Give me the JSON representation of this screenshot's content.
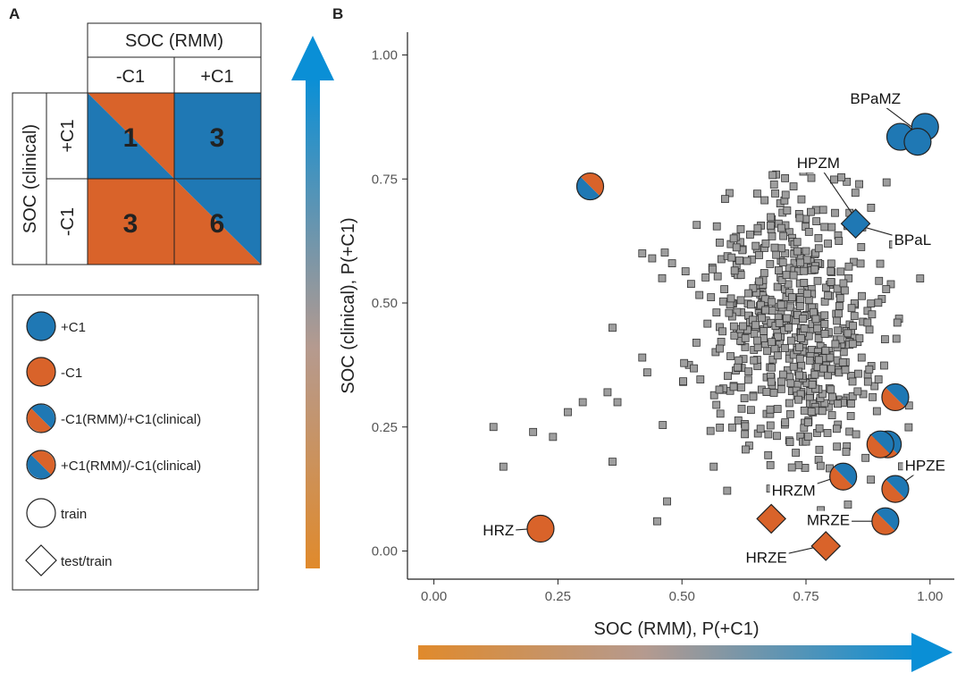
{
  "panels": {
    "a": "A",
    "b": "B"
  },
  "matrix": {
    "col_header": "SOC (RMM)",
    "row_header": "SOC (clinical)",
    "col_labels": [
      "-C1",
      "+C1"
    ],
    "row_labels": [
      "+C1",
      "-C1"
    ],
    "cells": [
      {
        "value": "1",
        "style": "orange-blue"
      },
      {
        "value": "3",
        "style": "blue"
      },
      {
        "value": "3",
        "style": "orange"
      },
      {
        "value": "6",
        "style": "orange-blue"
      }
    ]
  },
  "legend": {
    "items": [
      {
        "label": "+C1",
        "shape": "circle",
        "fill": "blue"
      },
      {
        "label": "-C1",
        "shape": "circle",
        "fill": "orange"
      },
      {
        "label": "-C1(RMM)/+C1(clinical)",
        "shape": "circle",
        "fill": "orange-blue"
      },
      {
        "label": "+C1(RMM)/-C1(clinical)",
        "shape": "circle",
        "fill": "blue-orange"
      },
      {
        "label": "train",
        "shape": "circle",
        "fill": "none"
      },
      {
        "label": "test/train",
        "shape": "diamond",
        "fill": "none"
      }
    ]
  },
  "colors": {
    "blue": "#1f78b4",
    "blue_bright": "#0a8fd6",
    "orange": "#d9632a",
    "orange_arrow": "#e08a2c",
    "gray": "#9e9e9e"
  },
  "chart_data": {
    "type": "scatter",
    "xlabel": "SOC (RMM), P(+C1)",
    "ylabel": "SOC (clinical), P(+C1)",
    "xlim": [
      -0.03,
      1.03
    ],
    "ylim": [
      -0.02,
      1.02
    ],
    "xticks": [
      "0.00",
      "0.25",
      "0.50",
      "0.75",
      "1.00"
    ],
    "yticks": [
      "0.00",
      "0.25",
      "0.50",
      "0.75",
      "1.00"
    ],
    "grid": false,
    "highlighted": [
      {
        "x": 0.99,
        "y": 0.855,
        "fill": "blue",
        "shape": "circle"
      },
      {
        "x": 0.94,
        "y": 0.835,
        "fill": "blue",
        "shape": "circle"
      },
      {
        "x": 0.975,
        "y": 0.825,
        "fill": "blue",
        "shape": "circle"
      },
      {
        "x": 0.85,
        "y": 0.66,
        "fill": "blue",
        "shape": "diamond"
      },
      {
        "x": 0.315,
        "y": 0.735,
        "fill": "orange-blue",
        "shape": "circle"
      },
      {
        "x": 0.93,
        "y": 0.31,
        "fill": "blue-orange",
        "shape": "circle"
      },
      {
        "x": 0.915,
        "y": 0.215,
        "fill": "blue-orange",
        "shape": "circle"
      },
      {
        "x": 0.9,
        "y": 0.215,
        "fill": "blue-orange",
        "shape": "circle"
      },
      {
        "x": 0.825,
        "y": 0.15,
        "fill": "blue-orange",
        "shape": "circle"
      },
      {
        "x": 0.93,
        "y": 0.125,
        "fill": "blue-orange",
        "shape": "circle"
      },
      {
        "x": 0.91,
        "y": 0.06,
        "fill": "blue-orange",
        "shape": "circle"
      },
      {
        "x": 0.215,
        "y": 0.045,
        "fill": "orange",
        "shape": "circle"
      },
      {
        "x": 0.68,
        "y": 0.065,
        "fill": "orange",
        "shape": "diamond"
      },
      {
        "x": 0.79,
        "y": 0.01,
        "fill": "orange",
        "shape": "diamond"
      }
    ],
    "labels": [
      {
        "text": "BPaMZ",
        "x": 0.89,
        "y": 0.91,
        "px": 0.97,
        "py": 0.85
      },
      {
        "text": "HPZM",
        "x": 0.775,
        "y": 0.78,
        "px": 0.85,
        "py": 0.67
      },
      {
        "text": "BPaL",
        "x": 0.965,
        "y": 0.625,
        "px": 0.86,
        "py": 0.655
      },
      {
        "text": "HRZ",
        "x": 0.13,
        "y": 0.04,
        "px": 0.2,
        "py": 0.045
      },
      {
        "text": "HRZM",
        "x": 0.725,
        "y": 0.12,
        "px": 0.815,
        "py": 0.15
      },
      {
        "text": "HPZE",
        "x": 0.99,
        "y": 0.17,
        "px": 0.935,
        "py": 0.13
      },
      {
        "text": "MRZE",
        "x": 0.795,
        "y": 0.06,
        "px": 0.9,
        "py": 0.06
      },
      {
        "text": "HRZE",
        "x": 0.67,
        "y": -0.015,
        "px": 0.78,
        "py": 0.01
      }
    ]
  }
}
